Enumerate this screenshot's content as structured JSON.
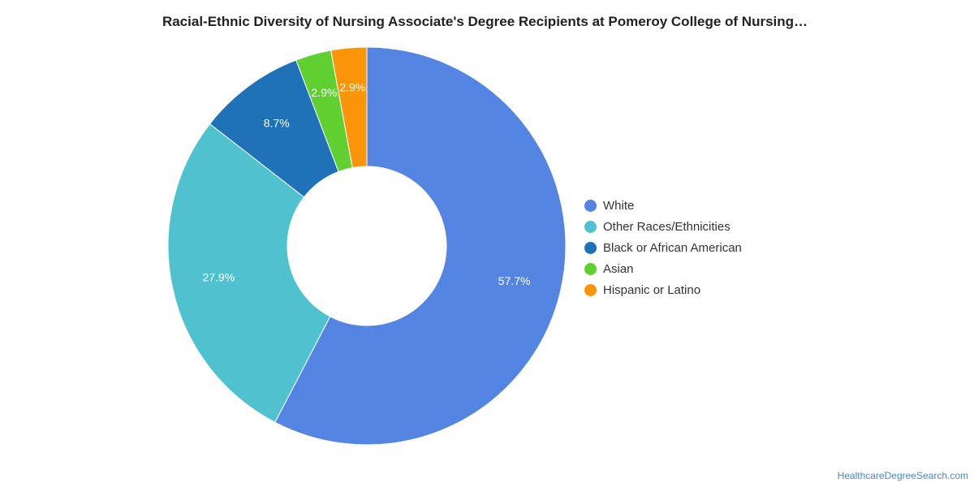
{
  "title": "Racial-Ethnic Diversity of Nursing Associate's Degree Recipients at Pomeroy College of Nursing…",
  "watermark": "HealthcareDegreeSearch.com",
  "chart_data": {
    "type": "pie",
    "style": "donut",
    "title": "Racial-Ethnic Diversity of Nursing Associate's Degree Recipients at Pomeroy College of Nursing…",
    "legend_position": "right",
    "slices": [
      {
        "label": "White",
        "value": 57.7,
        "display": "57.7%",
        "color": "#5485e3"
      },
      {
        "label": "Other Races/Ethnicities",
        "value": 27.9,
        "display": "27.9%",
        "color": "#50c2cf"
      },
      {
        "label": "Black or African American",
        "value": 8.7,
        "display": "8.7%",
        "color": "#1f72b8"
      },
      {
        "label": "Asian",
        "value": 2.9,
        "display": "2.9%",
        "color": "#5fd02f"
      },
      {
        "label": "Hispanic or Latino",
        "value": 2.9,
        "display": "2.9%",
        "color": "#fa9408"
      }
    ]
  }
}
